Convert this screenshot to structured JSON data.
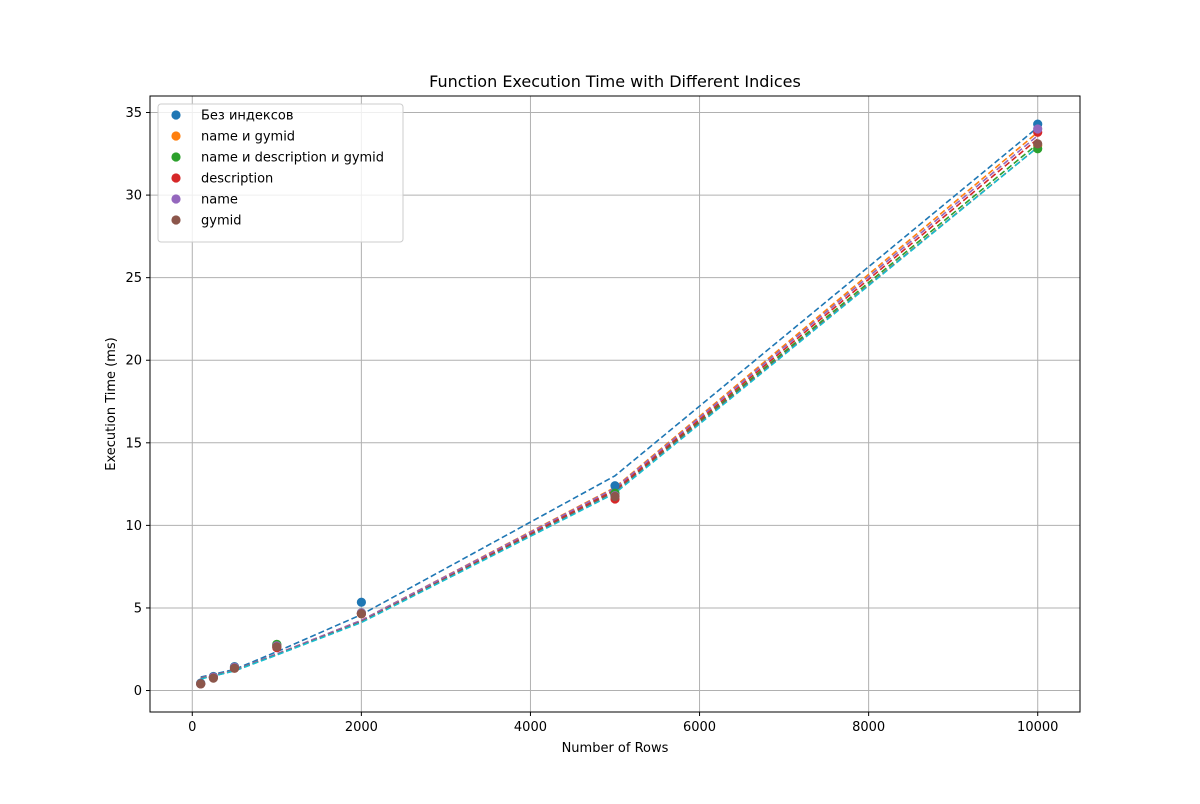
{
  "chart_data": {
    "type": "scatter",
    "title": "Function Execution Time with Different Indices",
    "xlabel": "Number of Rows",
    "ylabel": "Execution Time (ms)",
    "xlim": [
      -500,
      10500
    ],
    "ylim": [
      -1.3,
      36
    ],
    "xticks": [
      0,
      2000,
      4000,
      6000,
      8000,
      10000
    ],
    "yticks": [
      0,
      5,
      10,
      15,
      20,
      25,
      30,
      35
    ],
    "grid": true,
    "legend_position": "upper-left",
    "x": [
      100,
      250,
      500,
      1000,
      2000,
      5000,
      10000
    ],
    "series": [
      {
        "name": "Без индексов",
        "color": "#1f77b4",
        "values": [
          0.45,
          0.85,
          1.45,
          2.75,
          5.35,
          12.4,
          34.3
        ]
      },
      {
        "name": "name и gymid",
        "color": "#ff7f0e",
        "values": [
          0.4,
          0.8,
          1.4,
          2.75,
          4.65,
          11.85,
          33.0
        ]
      },
      {
        "name": "name и description и gymid",
        "color": "#2ca02c",
        "values": [
          0.4,
          0.8,
          1.4,
          2.8,
          4.7,
          11.95,
          32.8
        ]
      },
      {
        "name": "description",
        "color": "#d62728",
        "values": [
          0.4,
          0.8,
          1.35,
          2.6,
          4.65,
          11.6,
          33.8
        ]
      },
      {
        "name": "name",
        "color": "#9467bd",
        "values": [
          0.4,
          0.8,
          1.4,
          2.7,
          4.7,
          11.8,
          34.0
        ]
      },
      {
        "name": "gymid",
        "color": "#8c564b",
        "values": [
          0.4,
          0.75,
          1.35,
          2.65,
          4.65,
          11.75,
          33.1
        ]
      }
    ],
    "fit_lines": [
      {
        "color": "#1f77b4",
        "values": [
          0.82,
          0.98,
          1.28,
          2.35,
          4.6,
          13.0,
          34.1
        ]
      },
      {
        "color": "#ff7f0e",
        "values": [
          0.76,
          0.93,
          1.22,
          2.22,
          4.25,
          12.3,
          33.8
        ]
      },
      {
        "color": "#2ca02c",
        "values": [
          0.73,
          0.9,
          1.2,
          2.18,
          4.18,
          12.1,
          33.1
        ]
      },
      {
        "color": "#d62728",
        "values": [
          0.75,
          0.92,
          1.21,
          2.2,
          4.22,
          12.15,
          33.4
        ]
      },
      {
        "color": "#9467bd",
        "values": [
          0.76,
          0.93,
          1.22,
          2.22,
          4.25,
          12.25,
          33.6
        ]
      },
      {
        "color": "#8c564b",
        "values": [
          0.73,
          0.9,
          1.2,
          2.17,
          4.17,
          12.05,
          32.9
        ]
      },
      {
        "color": "#17becf",
        "values": [
          0.7,
          0.88,
          1.18,
          2.15,
          4.12,
          11.95,
          32.9
        ]
      }
    ]
  }
}
